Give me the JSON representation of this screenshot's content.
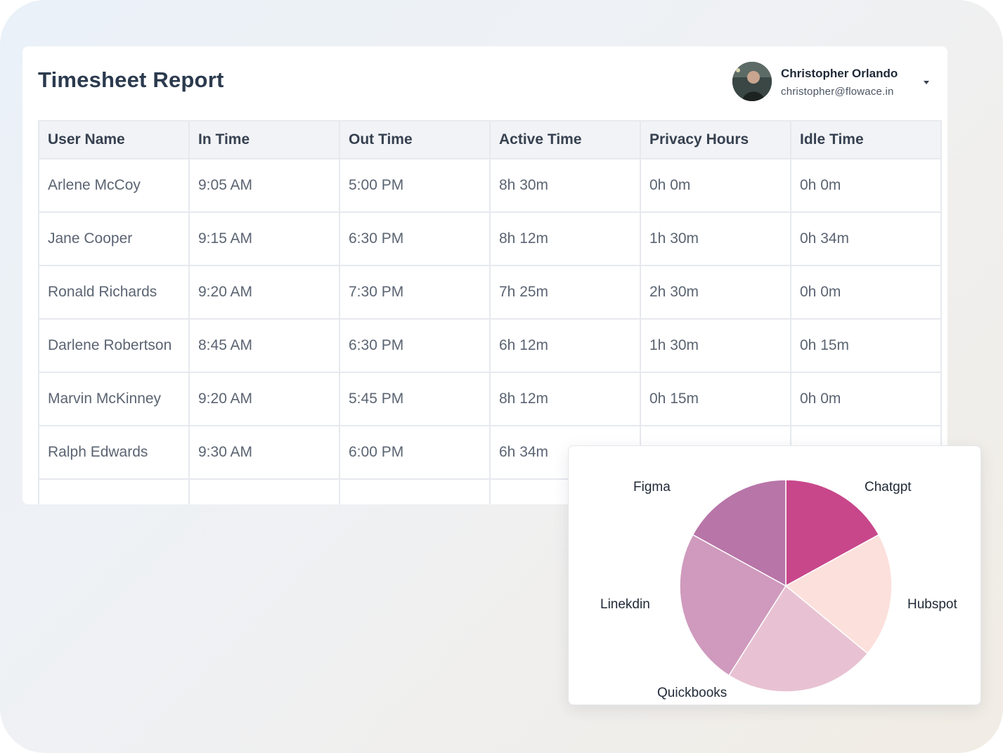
{
  "report": {
    "title": "Timesheet Report",
    "user": {
      "name": "Christopher Orlando",
      "email": "christopher@flowace.in",
      "menu_icon": "chevron-down-icon"
    }
  },
  "table": {
    "columns": [
      "User Name",
      "In Time",
      "Out Time",
      "Active Time",
      "Privacy Hours",
      "Idle Time"
    ],
    "rows": [
      [
        "Arlene McCoy",
        "9:05 AM",
        "5:00 PM",
        "8h 30m",
        "0h 0m",
        "0h 0m"
      ],
      [
        "Jane Cooper",
        "9:15 AM",
        "6:30 PM",
        "8h 12m",
        "1h 30m",
        "0h 34m"
      ],
      [
        "Ronald Richards",
        "9:20 AM",
        "7:30 PM",
        "7h 25m",
        "2h 30m",
        "0h 0m"
      ],
      [
        "Darlene Robertson",
        "8:45 AM",
        "6:30 PM",
        "6h 12m",
        "1h 30m",
        "0h 15m"
      ],
      [
        "Marvin McKinney",
        "9:20 AM",
        "5:45 PM",
        "8h 12m",
        "0h 15m",
        "0h 0m"
      ],
      [
        "Ralph Edwards",
        "9:30 AM",
        "6:00 PM",
        "6h 34m",
        "",
        ""
      ],
      [
        "",
        "",
        "",
        "",
        "",
        ""
      ]
    ]
  },
  "chart_data": {
    "type": "pie",
    "slices": [
      {
        "label": "Chatgpt",
        "value": 17,
        "color": "#c8478b"
      },
      {
        "label": "Hubspot",
        "value": 19,
        "color": "#fce0dc"
      },
      {
        "label": "Quickbooks",
        "value": 23,
        "color": "#e8c2d2"
      },
      {
        "label": "Linekdin",
        "value": 24,
        "color": "#cf9abd"
      },
      {
        "label": "Figma",
        "value": 17,
        "color": "#b875a8"
      }
    ]
  }
}
